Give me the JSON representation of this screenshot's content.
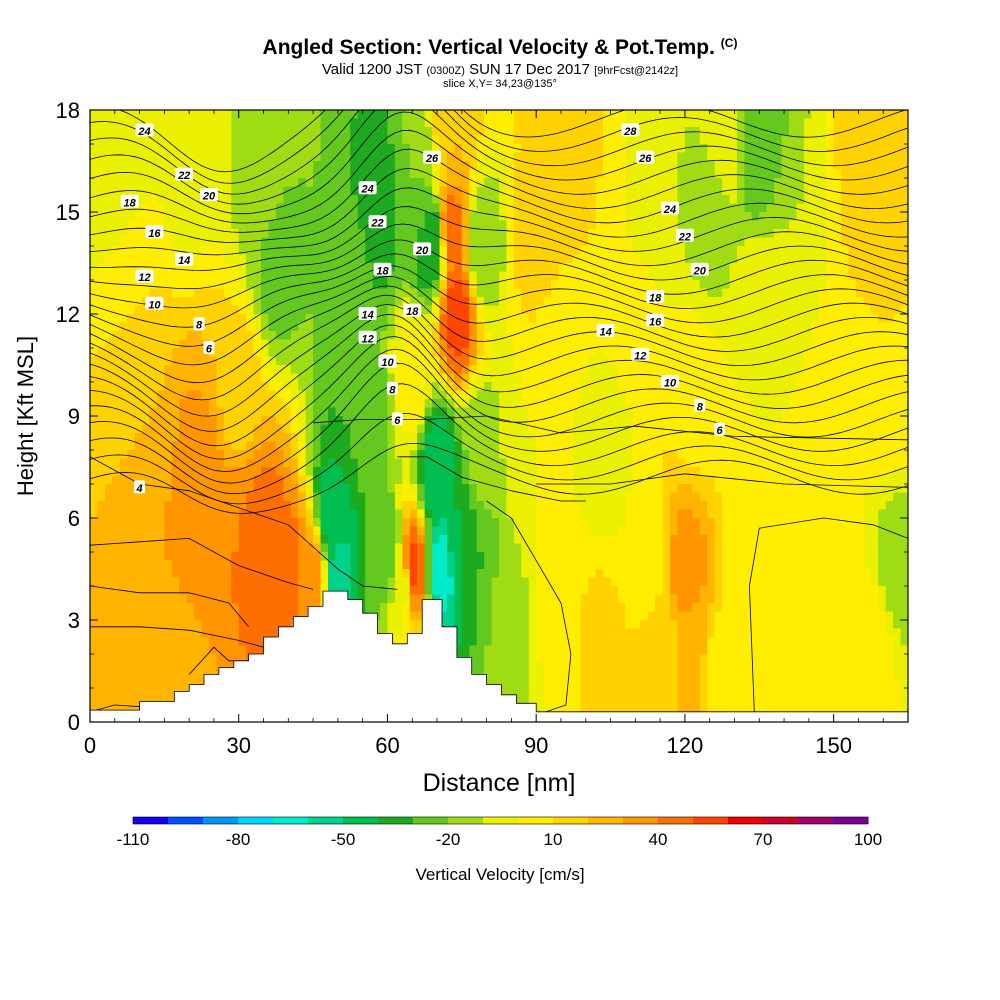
{
  "header": {
    "title": "Angled Section: Vertical Velocity & Pot.Temp.",
    "title_unit": "(C)",
    "valid_prefix": "Valid 1200 JST",
    "valid_utc": "(0300Z)",
    "valid_date": "SUN 17 Dec 2017",
    "valid_fcst": "[9hrFcst@2142z]",
    "slice": "slice X,Y= 34,23@135°"
  },
  "chart_data": {
    "type": "heatmap",
    "xlabel": "Distance [nm]",
    "ylabel": "Height [Kft MSL]",
    "xlim": [
      0,
      165
    ],
    "ylim": [
      0,
      18
    ],
    "x_ticks": [
      0,
      30,
      60,
      90,
      120,
      150
    ],
    "y_ticks": [
      0,
      3,
      6,
      9,
      12,
      15,
      18
    ],
    "colorbar": {
      "label": "Vertical Velocity [cm/s]",
      "min": -110,
      "max": 100,
      "step": 10,
      "tick_labels": [
        "-110",
        "-80",
        "-50",
        "-20",
        "10",
        "40",
        "70",
        "100"
      ],
      "colors": [
        "#1400f0",
        "#0050ff",
        "#0096ff",
        "#00d2ff",
        "#00ebc8",
        "#00d28c",
        "#00be50",
        "#1eaa1e",
        "#64c81e",
        "#a0dc14",
        "#ebf000",
        "#ffee00",
        "#ffd200",
        "#ffb400",
        "#ff9600",
        "#ff6e00",
        "#ff4600",
        "#eb0000",
        "#c80028",
        "#a00064",
        "#780096"
      ]
    },
    "terrain": [
      [
        0,
        0.35
      ],
      [
        10,
        0.35
      ],
      [
        10,
        0.6
      ],
      [
        17,
        0.6
      ],
      [
        17,
        0.9
      ],
      [
        20,
        0.9
      ],
      [
        20,
        1.1
      ],
      [
        23,
        1.1
      ],
      [
        23,
        1.4
      ],
      [
        26,
        1.4
      ],
      [
        26,
        1.6
      ],
      [
        29,
        1.6
      ],
      [
        29,
        1.8
      ],
      [
        32,
        1.8
      ],
      [
        32,
        2.0
      ],
      [
        35,
        2.0
      ],
      [
        35,
        2.5
      ],
      [
        38,
        2.5
      ],
      [
        38,
        2.8
      ],
      [
        41,
        2.8
      ],
      [
        41,
        3.1
      ],
      [
        44,
        3.1
      ],
      [
        44,
        3.4
      ],
      [
        47,
        3.4
      ],
      [
        47,
        3.85
      ],
      [
        52,
        3.85
      ],
      [
        52,
        3.6
      ],
      [
        55,
        3.6
      ],
      [
        55,
        3.2
      ],
      [
        58,
        3.2
      ],
      [
        58,
        2.6
      ],
      [
        61,
        2.6
      ],
      [
        61,
        2.3
      ],
      [
        64,
        2.3
      ],
      [
        64,
        2.6
      ],
      [
        67,
        2.6
      ],
      [
        67,
        3.6
      ],
      [
        71,
        3.6
      ],
      [
        71,
        2.8
      ],
      [
        74,
        2.8
      ],
      [
        74,
        1.9
      ],
      [
        77,
        1.9
      ],
      [
        77,
        1.4
      ],
      [
        80,
        1.4
      ],
      [
        80,
        1.1
      ],
      [
        83,
        1.1
      ],
      [
        83,
        0.8
      ],
      [
        86,
        0.8
      ],
      [
        86,
        0.55
      ],
      [
        90,
        0.55
      ],
      [
        90,
        0.3
      ],
      [
        165,
        0.3
      ]
    ],
    "velocity_field": [
      {
        "x": 5,
        "y": 3,
        "v": 20
      },
      {
        "x": 14,
        "y": 4.5,
        "v": 30
      },
      {
        "x": 22,
        "y": 5.5,
        "v": 40
      },
      {
        "x": 23,
        "y": 7,
        "v": 35
      },
      {
        "x": 31,
        "y": 5.5,
        "v": 40
      },
      {
        "x": 35,
        "y": 5.2,
        "v": 50
      },
      {
        "x": 40,
        "y": 4.5,
        "v": 45
      },
      {
        "x": 45,
        "y": 4.2,
        "v": 35
      },
      {
        "x": 18,
        "y": 1.5,
        "v": 20
      },
      {
        "x": 10,
        "y": 8.5,
        "v": 20
      },
      {
        "x": 30,
        "y": 9.5,
        "v": 15
      },
      {
        "x": 8,
        "y": 12.5,
        "v": 10
      },
      {
        "x": 5,
        "y": 16,
        "v": -10
      },
      {
        "x": 20,
        "y": 17,
        "v": -5
      },
      {
        "x": 35,
        "y": 16,
        "v": -15
      },
      {
        "x": 38,
        "y": 13.5,
        "v": -25
      },
      {
        "x": 49,
        "y": 6,
        "v": -50
      },
      {
        "x": 50,
        "y": 4,
        "v": -55
      },
      {
        "x": 52,
        "y": 9,
        "v": -30
      },
      {
        "x": 53,
        "y": 13,
        "v": -20
      },
      {
        "x": 58,
        "y": 15,
        "v": -40
      },
      {
        "x": 57,
        "y": 9,
        "v": -25
      },
      {
        "x": 60,
        "y": 5,
        "v": -30
      },
      {
        "x": 63,
        "y": 4,
        "v": -5
      },
      {
        "x": 65,
        "y": 4.5,
        "v": 55
      },
      {
        "x": 65,
        "y": 10,
        "v": 5
      },
      {
        "x": 66,
        "y": 16,
        "v": -20
      },
      {
        "x": 69,
        "y": 14,
        "v": -40
      },
      {
        "x": 70,
        "y": 7.5,
        "v": -50
      },
      {
        "x": 71,
        "y": 4.5,
        "v": -65
      },
      {
        "x": 74,
        "y": 5.5,
        "v": -40
      },
      {
        "x": 74,
        "y": 12,
        "v": 55
      },
      {
        "x": 73,
        "y": 14.5,
        "v": 45
      },
      {
        "x": 73,
        "y": 17,
        "v": 20
      },
      {
        "x": 79,
        "y": 14,
        "v": -20
      },
      {
        "x": 79,
        "y": 8,
        "v": -15
      },
      {
        "x": 78,
        "y": 4.5,
        "v": -30
      },
      {
        "x": 84,
        "y": 3,
        "v": -15
      },
      {
        "x": 88,
        "y": 8,
        "v": 0
      },
      {
        "x": 90,
        "y": 14,
        "v": 15
      },
      {
        "x": 95,
        "y": 17,
        "v": 20
      },
      {
        "x": 94,
        "y": 11,
        "v": 5
      },
      {
        "x": 94,
        "y": 4,
        "v": 5
      },
      {
        "x": 103,
        "y": 2.5,
        "v": 12
      },
      {
        "x": 104,
        "y": 8,
        "v": -10
      },
      {
        "x": 103,
        "y": 15,
        "v": 10
      },
      {
        "x": 110,
        "y": 12,
        "v": 10
      },
      {
        "x": 113,
        "y": 15,
        "v": -10
      },
      {
        "x": 113,
        "y": 5,
        "v": 5
      },
      {
        "x": 116,
        "y": 2,
        "v": 15
      },
      {
        "x": 120,
        "y": 4.5,
        "v": 35
      },
      {
        "x": 120,
        "y": 2,
        "v": 25
      },
      {
        "x": 122,
        "y": 9.5,
        "v": 5
      },
      {
        "x": 125,
        "y": 15,
        "v": -15
      },
      {
        "x": 128,
        "y": 17,
        "v": -5
      },
      {
        "x": 135,
        "y": 17,
        "v": -30
      },
      {
        "x": 134,
        "y": 7,
        "v": 0
      },
      {
        "x": 136,
        "y": 12,
        "v": 0
      },
      {
        "x": 142,
        "y": 14.5,
        "v": -10
      },
      {
        "x": 144,
        "y": 3,
        "v": 5
      },
      {
        "x": 150,
        "y": 9,
        "v": 5
      },
      {
        "x": 155,
        "y": 13,
        "v": 10
      },
      {
        "x": 158,
        "y": 16.5,
        "v": 20
      },
      {
        "x": 162,
        "y": 10,
        "v": 10
      },
      {
        "x": 163,
        "y": 4.5,
        "v": -15
      },
      {
        "x": 158,
        "y": 2,
        "v": 5
      },
      {
        "x": 128,
        "y": 0.8,
        "v": 0
      },
      {
        "x": 100,
        "y": 0.8,
        "v": 10
      },
      {
        "x": 150,
        "y": 0.8,
        "v": 5
      }
    ],
    "theta_contour_labels": [
      {
        "text": "24",
        "x": 11,
        "y": 17.4
      },
      {
        "text": "22",
        "x": 19,
        "y": 16.1
      },
      {
        "text": "20",
        "x": 24,
        "y": 15.5
      },
      {
        "text": "18",
        "x": 8,
        "y": 15.3
      },
      {
        "text": "16",
        "x": 13,
        "y": 14.4
      },
      {
        "text": "14",
        "x": 19,
        "y": 13.6
      },
      {
        "text": "12",
        "x": 11,
        "y": 13.1
      },
      {
        "text": "10",
        "x": 13,
        "y": 12.3
      },
      {
        "text": "8",
        "x": 22,
        "y": 11.7
      },
      {
        "text": "6",
        "x": 24,
        "y": 11.0
      },
      {
        "text": "4",
        "x": 10,
        "y": 6.9
      },
      {
        "text": "24",
        "x": 56,
        "y": 15.7
      },
      {
        "text": "22",
        "x": 58,
        "y": 14.7
      },
      {
        "text": "18",
        "x": 59,
        "y": 13.3
      },
      {
        "text": "14",
        "x": 56,
        "y": 12.0
      },
      {
        "text": "12",
        "x": 56,
        "y": 11.3
      },
      {
        "text": "10",
        "x": 60,
        "y": 10.6
      },
      {
        "text": "8",
        "x": 61,
        "y": 9.8
      },
      {
        "text": "6",
        "x": 62,
        "y": 8.9
      },
      {
        "text": "26",
        "x": 69,
        "y": 16.6
      },
      {
        "text": "20",
        "x": 67,
        "y": 13.9
      },
      {
        "text": "18",
        "x": 65,
        "y": 12.1
      },
      {
        "text": "28",
        "x": 109,
        "y": 17.4
      },
      {
        "text": "26",
        "x": 112,
        "y": 16.6
      },
      {
        "text": "24",
        "x": 117,
        "y": 15.1
      },
      {
        "text": "22",
        "x": 120,
        "y": 14.3
      },
      {
        "text": "20",
        "x": 123,
        "y": 13.3
      },
      {
        "text": "18",
        "x": 114,
        "y": 12.5
      },
      {
        "text": "16",
        "x": 114,
        "y": 11.8
      },
      {
        "text": "14",
        "x": 104,
        "y": 11.5
      },
      {
        "text": "12",
        "x": 111,
        "y": 10.8
      },
      {
        "text": "10",
        "x": 117,
        "y": 10.0
      },
      {
        "text": "8",
        "x": 123,
        "y": 9.3
      },
      {
        "text": "6",
        "x": 127,
        "y": 8.6
      }
    ]
  }
}
